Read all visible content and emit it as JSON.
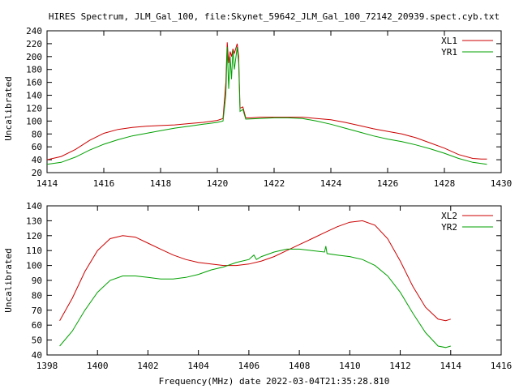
{
  "title": "HIRES Spectrum, JLM_Gal_100, file:Skynet_59642_JLM_Gal_100_72142_20939.spect.cyb.txt",
  "xlabel_bottom": "Frequency(MHz) date 2022-03-04T21:35:28.810",
  "colors": {
    "red": "#cc0000",
    "green": "#00a000",
    "axis": "#000000"
  },
  "chart_data": [
    {
      "type": "line",
      "title": "",
      "xlabel": "",
      "ylabel": "Uncalibrated",
      "xlim": [
        1414,
        1430
      ],
      "ylim": [
        20,
        240
      ],
      "xticks": [
        1414,
        1416,
        1418,
        1420,
        1422,
        1424,
        1426,
        1428,
        1430
      ],
      "yticks": [
        20,
        40,
        60,
        80,
        100,
        120,
        140,
        160,
        180,
        200,
        220,
        240
      ],
      "legend_position": "top-right",
      "series": [
        {
          "name": "XL1",
          "color": "#cc0000",
          "points": [
            [
              1414.0,
              40
            ],
            [
              1414.5,
              45
            ],
            [
              1415.0,
              56
            ],
            [
              1415.5,
              70
            ],
            [
              1416.0,
              81
            ],
            [
              1416.5,
              87
            ],
            [
              1417.0,
              90
            ],
            [
              1417.5,
              92
            ],
            [
              1418.0,
              93
            ],
            [
              1418.5,
              94
            ],
            [
              1419.0,
              96
            ],
            [
              1419.5,
              98
            ],
            [
              1420.0,
              101
            ],
            [
              1420.2,
              104
            ],
            [
              1420.3,
              160
            ],
            [
              1420.35,
              222
            ],
            [
              1420.4,
              190
            ],
            [
              1420.45,
              208
            ],
            [
              1420.5,
              200
            ],
            [
              1420.55,
              212
            ],
            [
              1420.6,
              205
            ],
            [
              1420.7,
              220
            ],
            [
              1420.75,
              200
            ],
            [
              1420.8,
              120
            ],
            [
              1420.9,
              122
            ],
            [
              1421.0,
              105
            ],
            [
              1421.2,
              105
            ],
            [
              1421.5,
              106
            ],
            [
              1422.0,
              106
            ],
            [
              1422.5,
              106
            ],
            [
              1423.0,
              106
            ],
            [
              1423.5,
              104
            ],
            [
              1424.0,
              102
            ],
            [
              1424.5,
              98
            ],
            [
              1425.0,
              93
            ],
            [
              1425.5,
              88
            ],
            [
              1426.0,
              84
            ],
            [
              1426.5,
              80
            ],
            [
              1427.0,
              74
            ],
            [
              1427.5,
              66
            ],
            [
              1428.0,
              58
            ],
            [
              1428.5,
              48
            ],
            [
              1429.0,
              42
            ],
            [
              1429.3,
              41
            ],
            [
              1429.5,
              41
            ]
          ]
        },
        {
          "name": "YR1",
          "color": "#00a000",
          "points": [
            [
              1414.0,
              33
            ],
            [
              1414.5,
              36
            ],
            [
              1415.0,
              44
            ],
            [
              1415.5,
              55
            ],
            [
              1416.0,
              64
            ],
            [
              1416.5,
              71
            ],
            [
              1417.0,
              77
            ],
            [
              1417.5,
              81
            ],
            [
              1418.0,
              85
            ],
            [
              1418.5,
              89
            ],
            [
              1419.0,
              92
            ],
            [
              1419.5,
              95
            ],
            [
              1420.0,
              98
            ],
            [
              1420.2,
              100
            ],
            [
              1420.3,
              140
            ],
            [
              1420.35,
              215
            ],
            [
              1420.4,
              150
            ],
            [
              1420.45,
              200
            ],
            [
              1420.5,
              165
            ],
            [
              1420.55,
              210
            ],
            [
              1420.6,
              180
            ],
            [
              1420.7,
              215
            ],
            [
              1420.75,
              190
            ],
            [
              1420.8,
              115
            ],
            [
              1420.9,
              118
            ],
            [
              1421.0,
              103
            ],
            [
              1421.5,
              104
            ],
            [
              1422.0,
              105
            ],
            [
              1422.5,
              105
            ],
            [
              1423.0,
              104
            ],
            [
              1423.5,
              100
            ],
            [
              1424.0,
              95
            ],
            [
              1424.5,
              89
            ],
            [
              1425.0,
              83
            ],
            [
              1425.5,
              77
            ],
            [
              1426.0,
              72
            ],
            [
              1426.5,
              68
            ],
            [
              1427.0,
              63
            ],
            [
              1427.5,
              57
            ],
            [
              1428.0,
              50
            ],
            [
              1428.5,
              42
            ],
            [
              1429.0,
              36
            ],
            [
              1429.5,
              33
            ]
          ]
        }
      ]
    },
    {
      "type": "line",
      "title": "",
      "xlabel": "Frequency(MHz) date 2022-03-04T21:35:28.810",
      "ylabel": "Uncalibrated",
      "xlim": [
        1398,
        1416
      ],
      "ylim": [
        40,
        140
      ],
      "xticks": [
        1398,
        1400,
        1402,
        1404,
        1406,
        1408,
        1410,
        1412,
        1414,
        1416
      ],
      "yticks": [
        40,
        50,
        60,
        70,
        80,
        90,
        100,
        110,
        120,
        130,
        140
      ],
      "legend_position": "top-right",
      "series": [
        {
          "name": "XL2",
          "color": "#cc0000",
          "points": [
            [
              1398.5,
              63
            ],
            [
              1399.0,
              78
            ],
            [
              1399.5,
              96
            ],
            [
              1400.0,
              110
            ],
            [
              1400.5,
              118
            ],
            [
              1401.0,
              120
            ],
            [
              1401.5,
              119
            ],
            [
              1402.0,
              115
            ],
            [
              1402.5,
              111
            ],
            [
              1403.0,
              107
            ],
            [
              1403.5,
              104
            ],
            [
              1404.0,
              102
            ],
            [
              1404.5,
              101
            ],
            [
              1405.0,
              100
            ],
            [
              1405.5,
              100
            ],
            [
              1406.0,
              101
            ],
            [
              1406.5,
              103
            ],
            [
              1407.0,
              106
            ],
            [
              1407.5,
              110
            ],
            [
              1408.0,
              114
            ],
            [
              1408.5,
              118
            ],
            [
              1409.0,
              122
            ],
            [
              1409.5,
              126
            ],
            [
              1410.0,
              129
            ],
            [
              1410.5,
              130
            ],
            [
              1411.0,
              127
            ],
            [
              1411.5,
              118
            ],
            [
              1412.0,
              103
            ],
            [
              1412.5,
              86
            ],
            [
              1413.0,
              72
            ],
            [
              1413.5,
              64
            ],
            [
              1413.8,
              63
            ],
            [
              1414.0,
              64
            ]
          ]
        },
        {
          "name": "YR2",
          "color": "#00a000",
          "points": [
            [
              1398.5,
              46
            ],
            [
              1399.0,
              56
            ],
            [
              1399.5,
              70
            ],
            [
              1400.0,
              82
            ],
            [
              1400.5,
              90
            ],
            [
              1401.0,
              93
            ],
            [
              1401.5,
              93
            ],
            [
              1402.0,
              92
            ],
            [
              1402.5,
              91
            ],
            [
              1403.0,
              91
            ],
            [
              1403.5,
              92
            ],
            [
              1404.0,
              94
            ],
            [
              1404.5,
              97
            ],
            [
              1405.0,
              99
            ],
            [
              1405.5,
              102
            ],
            [
              1406.0,
              104
            ],
            [
              1406.2,
              107
            ],
            [
              1406.3,
              104
            ],
            [
              1406.5,
              106
            ],
            [
              1407.0,
              109
            ],
            [
              1407.5,
              111
            ],
            [
              1408.0,
              111
            ],
            [
              1408.5,
              110
            ],
            [
              1409.0,
              109
            ],
            [
              1409.05,
              113
            ],
            [
              1409.1,
              108
            ],
            [
              1409.5,
              107
            ],
            [
              1410.0,
              106
            ],
            [
              1410.5,
              104
            ],
            [
              1411.0,
              100
            ],
            [
              1411.5,
              93
            ],
            [
              1412.0,
              82
            ],
            [
              1412.5,
              68
            ],
            [
              1413.0,
              55
            ],
            [
              1413.5,
              46
            ],
            [
              1413.8,
              45
            ],
            [
              1414.0,
              46
            ]
          ]
        }
      ]
    }
  ]
}
